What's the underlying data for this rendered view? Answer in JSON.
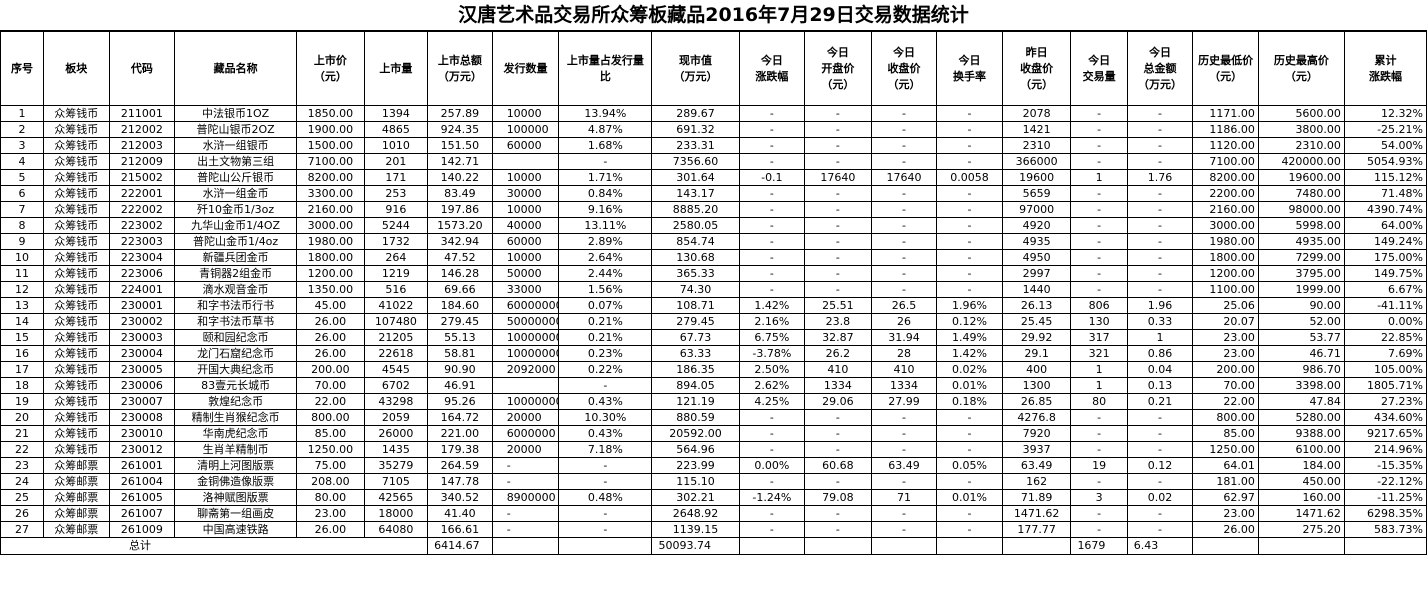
{
  "title": "汉唐艺术品交易所众筹板藏品2016年7月29日交易数据统计",
  "headers": [
    "序号",
    "板块",
    "代码",
    "藏品名称",
    "上市价\n（元）",
    "上市量",
    "上市总额\n（万元）",
    "发行数量",
    "上市量占发行量\n比",
    "现市值\n（万元）",
    "今日\n涨跌幅",
    "今日\n开盘价\n（元）",
    "今日\n收盘价\n（元）",
    "今日\n换手率",
    "昨日\n收盘价\n（元）",
    "今日\n交易量",
    "今日\n总金额\n（万元）",
    "历史最低价\n（元）",
    "历史最高价\n（元）",
    "累计\n涨跌幅"
  ],
  "rows": [
    [
      "1",
      "众筹钱币",
      "211001",
      "中法银币1OZ",
      "1850.00",
      "1394",
      "257.89",
      "10000",
      "13.94%",
      "289.67",
      "-",
      "-",
      "-",
      "-",
      "2078",
      "-",
      "-",
      "1171.00",
      "5600.00",
      "12.32%"
    ],
    [
      "2",
      "众筹钱币",
      "212002",
      "普陀山银币2OZ",
      "1900.00",
      "4865",
      "924.35",
      "100000",
      "4.87%",
      "691.32",
      "-",
      "-",
      "-",
      "-",
      "1421",
      "-",
      "-",
      "1186.00",
      "3800.00",
      "-25.21%"
    ],
    [
      "3",
      "众筹钱币",
      "212003",
      "水浒一组银币",
      "1500.00",
      "1010",
      "151.50",
      "60000",
      "1.68%",
      "233.31",
      "-",
      "-",
      "-",
      "-",
      "2310",
      "-",
      "-",
      "1120.00",
      "2310.00",
      "54.00%"
    ],
    [
      "4",
      "众筹钱币",
      "212009",
      "出土文物第三组",
      "7100.00",
      "201",
      "142.71",
      "",
      "-",
      "7356.60",
      "-",
      "-",
      "-",
      "-",
      "366000",
      "-",
      "-",
      "7100.00",
      "420000.00",
      "5054.93%"
    ],
    [
      "5",
      "众筹钱币",
      "215002",
      "普陀山公斤银币",
      "8200.00",
      "171",
      "140.22",
      "10000",
      "1.71%",
      "301.64",
      "-0.1",
      "17640",
      "17640",
      "0.0058",
      "19600",
      "1",
      "1.76",
      "8200.00",
      "19600.00",
      "115.12%"
    ],
    [
      "6",
      "众筹钱币",
      "222001",
      "水浒一组金币",
      "3300.00",
      "253",
      "83.49",
      "30000",
      "0.84%",
      "143.17",
      "-",
      "-",
      "-",
      "-",
      "5659",
      "-",
      "-",
      "2200.00",
      "7480.00",
      "71.48%"
    ],
    [
      "7",
      "众筹钱币",
      "222002",
      "歼10金币1/3oz",
      "2160.00",
      "916",
      "197.86",
      "10000",
      "9.16%",
      "8885.20",
      "-",
      "-",
      "-",
      "-",
      "97000",
      "-",
      "-",
      "2160.00",
      "98000.00",
      "4390.74%"
    ],
    [
      "8",
      "众筹钱币",
      "223002",
      "九华山金币1/4OZ",
      "3000.00",
      "5244",
      "1573.20",
      "40000",
      "13.11%",
      "2580.05",
      "-",
      "-",
      "-",
      "-",
      "4920",
      "-",
      "-",
      "3000.00",
      "5998.00",
      "64.00%"
    ],
    [
      "9",
      "众筹钱币",
      "223003",
      "普陀山金币1/4oz",
      "1980.00",
      "1732",
      "342.94",
      "60000",
      "2.89%",
      "854.74",
      "-",
      "-",
      "-",
      "-",
      "4935",
      "-",
      "-",
      "1980.00",
      "4935.00",
      "149.24%"
    ],
    [
      "10",
      "众筹钱币",
      "223004",
      "新疆兵团金币",
      "1800.00",
      "264",
      "47.52",
      "10000",
      "2.64%",
      "130.68",
      "-",
      "-",
      "-",
      "-",
      "4950",
      "-",
      "-",
      "1800.00",
      "7299.00",
      "175.00%"
    ],
    [
      "11",
      "众筹钱币",
      "223006",
      "青铜器2组金币",
      "1200.00",
      "1219",
      "146.28",
      "50000",
      "2.44%",
      "365.33",
      "-",
      "-",
      "-",
      "-",
      "2997",
      "-",
      "-",
      "1200.00",
      "3795.00",
      "149.75%"
    ],
    [
      "12",
      "众筹钱币",
      "224001",
      "滴水观音金币",
      "1350.00",
      "516",
      "69.66",
      "33000",
      "1.56%",
      "74.30",
      "-",
      "-",
      "-",
      "-",
      "1440",
      "-",
      "-",
      "1100.00",
      "1999.00",
      "6.67%"
    ],
    [
      "13",
      "众筹钱币",
      "230001",
      "和字书法币行书",
      "45.00",
      "41022",
      "184.60",
      "60000000",
      "0.07%",
      "108.71",
      "1.42%",
      "25.51",
      "26.5",
      "1.96%",
      "26.13",
      "806",
      "1.96",
      "25.06",
      "90.00",
      "-41.11%"
    ],
    [
      "14",
      "众筹钱币",
      "230002",
      "和字书法币草书",
      "26.00",
      "107480",
      "279.45",
      "50000000",
      "0.21%",
      "279.45",
      "2.16%",
      "23.8",
      "26",
      "0.12%",
      "25.45",
      "130",
      "0.33",
      "20.07",
      "52.00",
      "0.00%"
    ],
    [
      "15",
      "众筹钱币",
      "230003",
      "颐和园纪念币",
      "26.00",
      "21205",
      "55.13",
      "10000000",
      "0.21%",
      "67.73",
      "6.75%",
      "32.87",
      "31.94",
      "1.49%",
      "29.92",
      "317",
      "1",
      "23.00",
      "53.77",
      "22.85%"
    ],
    [
      "16",
      "众筹钱币",
      "230004",
      "龙门石窟纪念币",
      "26.00",
      "22618",
      "58.81",
      "10000000",
      "0.23%",
      "63.33",
      "-3.78%",
      "26.2",
      "28",
      "1.42%",
      "29.1",
      "321",
      "0.86",
      "23.00",
      "46.71",
      "7.69%"
    ],
    [
      "17",
      "众筹钱币",
      "230005",
      "开国大典纪念币",
      "200.00",
      "4545",
      "90.90",
      "2092000",
      "0.22%",
      "186.35",
      "2.50%",
      "410",
      "410",
      "0.02%",
      "400",
      "1",
      "0.04",
      "200.00",
      "986.70",
      "105.00%"
    ],
    [
      "18",
      "众筹钱币",
      "230006",
      "83壹元长城币",
      "70.00",
      "6702",
      "46.91",
      "",
      "-",
      "894.05",
      "2.62%",
      "1334",
      "1334",
      "0.01%",
      "1300",
      "1",
      "0.13",
      "70.00",
      "3398.00",
      "1805.71%"
    ],
    [
      "19",
      "众筹钱币",
      "230007",
      "敦煌纪念币",
      "22.00",
      "43298",
      "95.26",
      "10000000",
      "0.43%",
      "121.19",
      "4.25%",
      "29.06",
      "27.99",
      "0.18%",
      "26.85",
      "80",
      "0.21",
      "22.00",
      "47.84",
      "27.23%"
    ],
    [
      "20",
      "众筹钱币",
      "230008",
      "精制生肖猴纪念币",
      "800.00",
      "2059",
      "164.72",
      "20000",
      "10.30%",
      "880.59",
      "-",
      "-",
      "-",
      "-",
      "4276.8",
      "-",
      "-",
      "800.00",
      "5280.00",
      "434.60%"
    ],
    [
      "21",
      "众筹钱币",
      "230010",
      "华南虎纪念币",
      "85.00",
      "26000",
      "221.00",
      "6000000",
      "0.43%",
      "20592.00",
      "-",
      "-",
      "-",
      "-",
      "7920",
      "-",
      "-",
      "85.00",
      "9388.00",
      "9217.65%"
    ],
    [
      "22",
      "众筹钱币",
      "230012",
      "生肖羊精制币",
      "1250.00",
      "1435",
      "179.38",
      "20000",
      "7.18%",
      "564.96",
      "-",
      "-",
      "-",
      "-",
      "3937",
      "-",
      "-",
      "1250.00",
      "6100.00",
      "214.96%"
    ],
    [
      "23",
      "众筹邮票",
      "261001",
      "清明上河图版票",
      "75.00",
      "35279",
      "264.59",
      "-",
      "-",
      "223.99",
      "0.00%",
      "60.68",
      "63.49",
      "0.05%",
      "63.49",
      "19",
      "0.12",
      "64.01",
      "184.00",
      "-15.35%"
    ],
    [
      "24",
      "众筹邮票",
      "261004",
      "金铜佛造像版票",
      "208.00",
      "7105",
      "147.78",
      "-",
      "-",
      "115.10",
      "-",
      "-",
      "-",
      "-",
      "162",
      "-",
      "-",
      "181.00",
      "450.00",
      "-22.12%"
    ],
    [
      "25",
      "众筹邮票",
      "261005",
      "洛神赋图版票",
      "80.00",
      "42565",
      "340.52",
      "8900000",
      "0.48%",
      "302.21",
      "-1.24%",
      "79.08",
      "71",
      "0.01%",
      "71.89",
      "3",
      "0.02",
      "62.97",
      "160.00",
      "-11.25%"
    ],
    [
      "26",
      "众筹邮票",
      "261007",
      "聊斋第一组画皮",
      "23.00",
      "18000",
      "41.40",
      "-",
      "-",
      "2648.92",
      "-",
      "-",
      "-",
      "-",
      "1471.62",
      "-",
      "-",
      "23.00",
      "1471.62",
      "6298.35%"
    ],
    [
      "27",
      "众筹邮票",
      "261009",
      "中国高速铁路",
      "26.00",
      "64080",
      "166.61",
      "-",
      "-",
      "1139.15",
      "-",
      "-",
      "-",
      "-",
      "177.77",
      "-",
      "-",
      "26.00",
      "275.20",
      "583.73%"
    ]
  ],
  "footer": {
    "label": "总计",
    "total_amount": "6414.67",
    "market_value": "50093.74",
    "volume": "1679",
    "total_money": "6.43"
  }
}
